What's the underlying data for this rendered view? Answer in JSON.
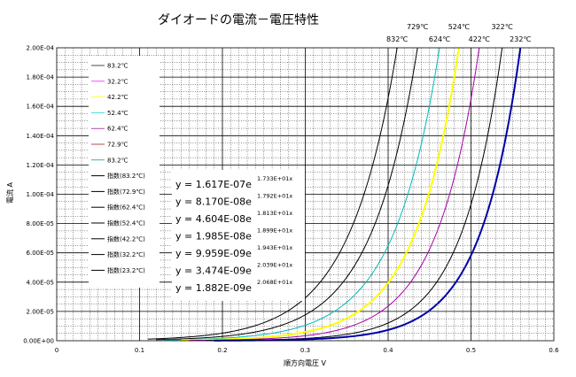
{
  "chart_data": {
    "type": "line",
    "title": "ダイオードの電流－電圧特性",
    "xlabel": "順方向電圧 V",
    "ylabel": "電流 A",
    "xlim": [
      0,
      0.6
    ],
    "ylim": [
      0,
      0.0002
    ],
    "x_ticks": [
      "0",
      "0.1",
      "0.2",
      "0.3",
      "0.4",
      "0.5",
      "0.6"
    ],
    "y_ticks": [
      "0.00E+00",
      "2.00E-05",
      "4.00E-05",
      "6.00E-05",
      "8.00E-05",
      "1.00E-04",
      "1.20E-04",
      "1.40E-04",
      "1.60E-04",
      "1.80E-04",
      "2.00E-04"
    ],
    "grid": true,
    "legend_position": "left",
    "legend": [
      {
        "label": "83.2℃",
        "color": "#000000",
        "width": 0.7
      },
      {
        "label": "32.2℃",
        "color": "#ff00ff",
        "width": 0.7
      },
      {
        "label": "42.2℃",
        "color": "#ffff00",
        "width": 0.7
      },
      {
        "label": "52.4℃",
        "color": "#00cccc",
        "width": 0.7
      },
      {
        "label": "62.4℃",
        "color": "#880088",
        "width": 0.7
      },
      {
        "label": "72.9℃",
        "color": "#880000",
        "width": 0.7
      },
      {
        "label": "83.2℃",
        "color": "#008888",
        "width": 0.7
      },
      {
        "label": "指数(83.2℃)",
        "color": "#000000",
        "width": 1
      },
      {
        "label": "指数(72.9℃)",
        "color": "#000000",
        "width": 1
      },
      {
        "label": "指数(62.4℃)",
        "color": "#000000",
        "width": 1
      },
      {
        "label": "指数(52.4℃)",
        "color": "#000000",
        "width": 1
      },
      {
        "label": "指数(42.2℃)",
        "color": "#000000",
        "width": 1
      },
      {
        "label": "指数(32.2℃)",
        "color": "#000000",
        "width": 1
      },
      {
        "label": "指数(23.2℃)",
        "color": "#000000",
        "width": 1
      }
    ],
    "equations": [
      {
        "prefix": "y = 1.617E-07e",
        "exponent": "1.733E+01x"
      },
      {
        "prefix": "y = 8.170E-08e",
        "exponent": "1.792E+01x"
      },
      {
        "prefix": "y = 4.604E-08e",
        "exponent": "1.813E+01x"
      },
      {
        "prefix": "y = 1.985E-08e",
        "exponent": "1.899E+01x"
      },
      {
        "prefix": "y = 9.959E-09e",
        "exponent": "1.943E+01x"
      },
      {
        "prefix": "y = 3.474E-09e",
        "exponent": "2.039E+01x"
      },
      {
        "prefix": "y = 1.882E-09e",
        "exponent": "2.068E+01x"
      }
    ],
    "series": [
      {
        "name": "83.2℃",
        "a": 1.617e-07,
        "b": 17.33,
        "color": "#000000",
        "width": 1.0,
        "x_start": 0.11
      },
      {
        "name": "72.9℃",
        "a": 8.17e-08,
        "b": 17.92,
        "color": "#000000",
        "width": 1.0,
        "x_start": 0.12
      },
      {
        "name": "62.4℃",
        "a": 4.604e-08,
        "b": 18.13,
        "color": "#00bbbb",
        "width": 1.0,
        "x_start": 0.13
      },
      {
        "name": "52.4℃",
        "a": 1.985e-08,
        "b": 18.99,
        "color": "#ffff00",
        "width": 2.0,
        "x_start": 0.15
      },
      {
        "name": "42.2℃",
        "a": 9.959e-09,
        "b": 19.43,
        "color": "#aa00aa",
        "width": 1.0,
        "x_start": 0.16
      },
      {
        "name": "32.2℃",
        "a": 3.474e-09,
        "b": 20.39,
        "color": "#000000",
        "width": 1.0,
        "x_start": 0.18
      },
      {
        "name": "23.2℃",
        "a": 1.882e-09,
        "b": 20.68,
        "color": "#0000aa",
        "width": 2.0,
        "x_start": 0.19
      }
    ],
    "curve_labels": [
      "832℃",
      "729℃",
      "624℃",
      "524℃",
      "422℃",
      "322℃",
      "232℃"
    ]
  }
}
